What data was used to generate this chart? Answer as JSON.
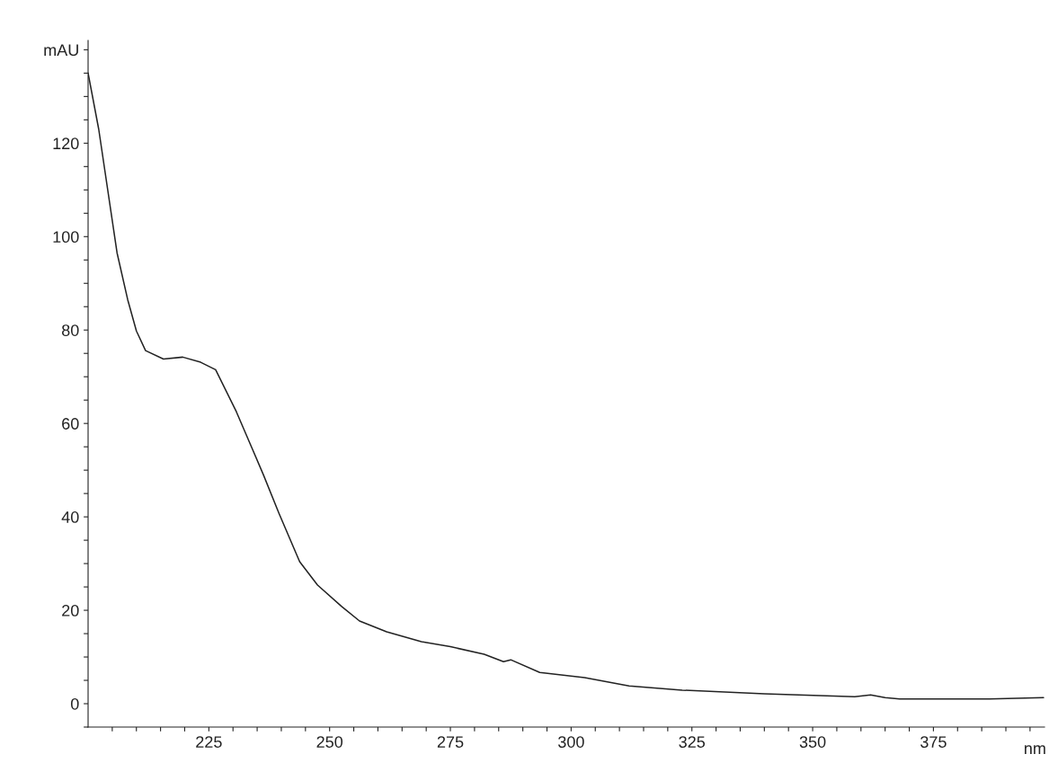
{
  "chart_data": {
    "type": "line",
    "xlabel": "nm",
    "x": [
      200,
      202.2,
      206,
      208.2,
      210,
      211.9,
      215.6,
      219.6,
      223.3,
      226.4,
      230.7,
      233.9,
      236.3,
      239.5,
      243.8,
      247.5,
      252.5,
      256.2,
      261.8,
      269,
      275,
      282,
      286,
      287.5,
      293.5,
      302.8,
      312,
      323,
      340,
      358.7,
      362,
      365,
      368,
      386.6,
      397.8
    ],
    "series": [
      {
        "color": "#222222",
        "values": [
          135,
          123,
          96.5,
          86.5,
          79.8,
          75.6,
          73.8,
          74.2,
          73.1,
          71.5,
          62.5,
          54.8,
          49,
          40.8,
          30.4,
          25.4,
          20.8,
          17.7,
          15.4,
          13.3,
          12.2,
          10.6,
          9,
          9.4,
          6.7,
          5.6,
          3.8,
          2.9,
          2.1,
          1.5,
          1.9,
          1.3,
          1,
          1,
          1.3
        ]
      }
    ],
    "xlim": [
      200,
      398
    ],
    "ylim": [
      -5,
      142
    ],
    "xticks": [
      {
        "value": 205,
        "label": null
      },
      {
        "value": 210,
        "label": null
      },
      {
        "value": 215,
        "label": null
      },
      {
        "value": 220,
        "label": null
      },
      225,
      {
        "value": 230,
        "label": null
      },
      {
        "value": 235,
        "label": null
      },
      {
        "value": 240,
        "label": null
      },
      {
        "value": 245,
        "label": null
      },
      250,
      {
        "value": 255,
        "label": null
      },
      {
        "value": 260,
        "label": null
      },
      {
        "value": 265,
        "label": null
      },
      {
        "value": 270,
        "label": null
      },
      275,
      {
        "value": 280,
        "label": null
      },
      {
        "value": 285,
        "label": null
      },
      {
        "value": 290,
        "label": null
      },
      {
        "value": 295,
        "label": null
      },
      300,
      {
        "value": 305,
        "label": null
      },
      {
        "value": 310,
        "label": null
      },
      {
        "value": 315,
        "label": null
      },
      {
        "value": 320,
        "label": null
      },
      325,
      {
        "value": 330,
        "label": null
      },
      {
        "value": 335,
        "label": null
      },
      {
        "value": 340,
        "label": null
      },
      {
        "value": 345,
        "label": null
      },
      350,
      {
        "value": 355,
        "label": null
      },
      {
        "value": 360,
        "label": null
      },
      {
        "value": 365,
        "label": null
      },
      {
        "value": 370,
        "label": null
      },
      375,
      {
        "value": 380,
        "label": null
      },
      {
        "value": 385,
        "label": null
      },
      {
        "value": 390,
        "label": null
      },
      {
        "value": 395,
        "label": null
      }
    ],
    "yticks": [
      {
        "value": -5,
        "label": null
      },
      0,
      {
        "value": 5,
        "label": null
      },
      {
        "value": 10,
        "label": null
      },
      {
        "value": 15,
        "label": null
      },
      20,
      {
        "value": 25,
        "label": null
      },
      {
        "value": 30,
        "label": null
      },
      {
        "value": 35,
        "label": null
      },
      40,
      {
        "value": 45,
        "label": null
      },
      {
        "value": 50,
        "label": null
      },
      {
        "value": 55,
        "label": null
      },
      60,
      {
        "value": 65,
        "label": null
      },
      {
        "value": 70,
        "label": null
      },
      {
        "value": 75,
        "label": null
      },
      80,
      {
        "value": 85,
        "label": null
      },
      {
        "value": 90,
        "label": null
      },
      {
        "value": 95,
        "label": null
      },
      100,
      {
        "value": 105,
        "label": null
      },
      {
        "value": 110,
        "label": null
      },
      {
        "value": 115,
        "label": null
      },
      120,
      {
        "value": 125,
        "label": null
      },
      {
        "value": 130,
        "label": null
      },
      {
        "value": 135,
        "label": null
      },
      {
        "value": 140,
        "label": "mAU"
      }
    ],
    "grid": false,
    "legend": false,
    "marker": "none",
    "line_style": "solid"
  }
}
